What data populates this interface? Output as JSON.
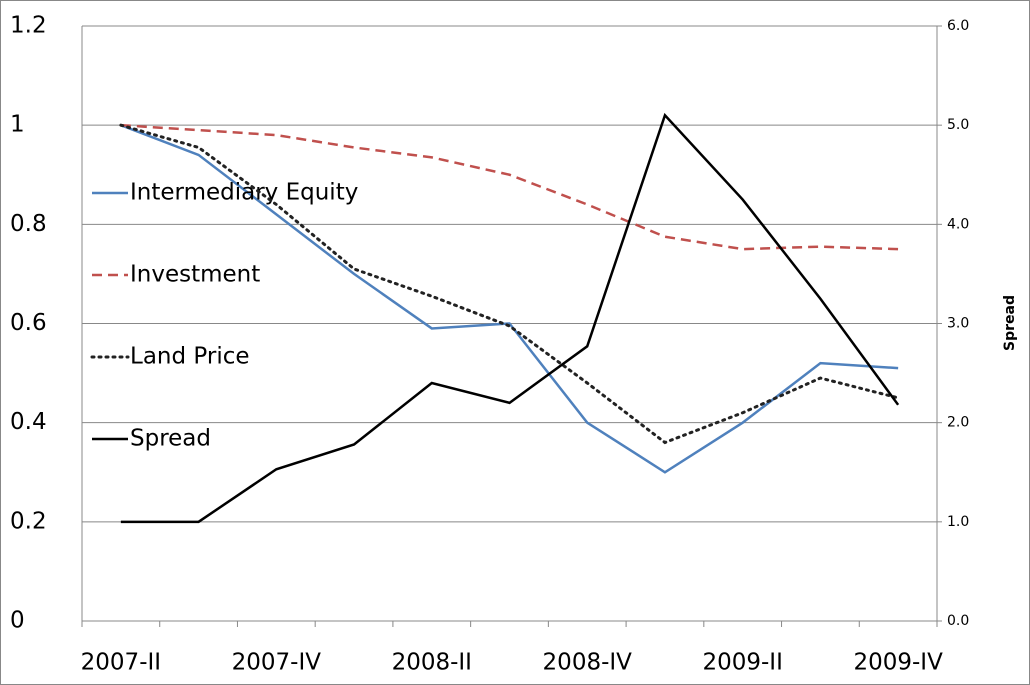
{
  "chart_data": {
    "type": "line",
    "categories": [
      "2007-II",
      null,
      "2007-IV",
      null,
      "2008-II",
      null,
      "2008-IV",
      null,
      "2009-II",
      null,
      "2009-IV"
    ],
    "series": [
      {
        "name": "Intermediary Equity",
        "color": "#4f81bd",
        "dash": "solid",
        "values": [
          1.0,
          0.94,
          0.82,
          0.7,
          0.59,
          0.6,
          0.4,
          0.3,
          0.4,
          0.52,
          0.51
        ]
      },
      {
        "name": "Investment",
        "color": "#c0504d",
        "dash": "dashed",
        "values": [
          1.0,
          0.99,
          0.98,
          0.955,
          0.935,
          0.9,
          0.84,
          0.775,
          0.75,
          0.755,
          0.75
        ]
      },
      {
        "name": "Land Price",
        "color": "#222222",
        "dash": "dotted",
        "values": [
          1.0,
          0.955,
          0.84,
          0.71,
          0.655,
          0.595,
          0.48,
          0.36,
          0.42,
          0.49,
          0.45
        ]
      },
      {
        "name": "Spread",
        "color": "#000000",
        "dash": "solid",
        "axis": "y2",
        "values": [
          1.0,
          1.0,
          1.53,
          1.78,
          2.4,
          2.2,
          2.77,
          5.1,
          4.25,
          3.25,
          2.18
        ]
      }
    ],
    "ylim": [
      0,
      1.2
    ],
    "yticks": [
      0,
      0.2,
      0.4,
      0.6,
      0.8,
      1,
      1.2
    ],
    "y2lim": [
      0,
      6
    ],
    "y2label": "Spread",
    "y2ticks": [
      {
        "value": 0,
        "label": "0.0"
      },
      {
        "value": 1,
        "label": "1.0"
      },
      {
        "value": 2,
        "label": "2.0"
      },
      {
        "value": 3,
        "label": "3.0"
      },
      {
        "value": 4,
        "label": "4.0"
      },
      {
        "value": 5,
        "label": "5.0"
      },
      {
        "value": 6,
        "label": "6.0"
      }
    ],
    "grid": true
  }
}
